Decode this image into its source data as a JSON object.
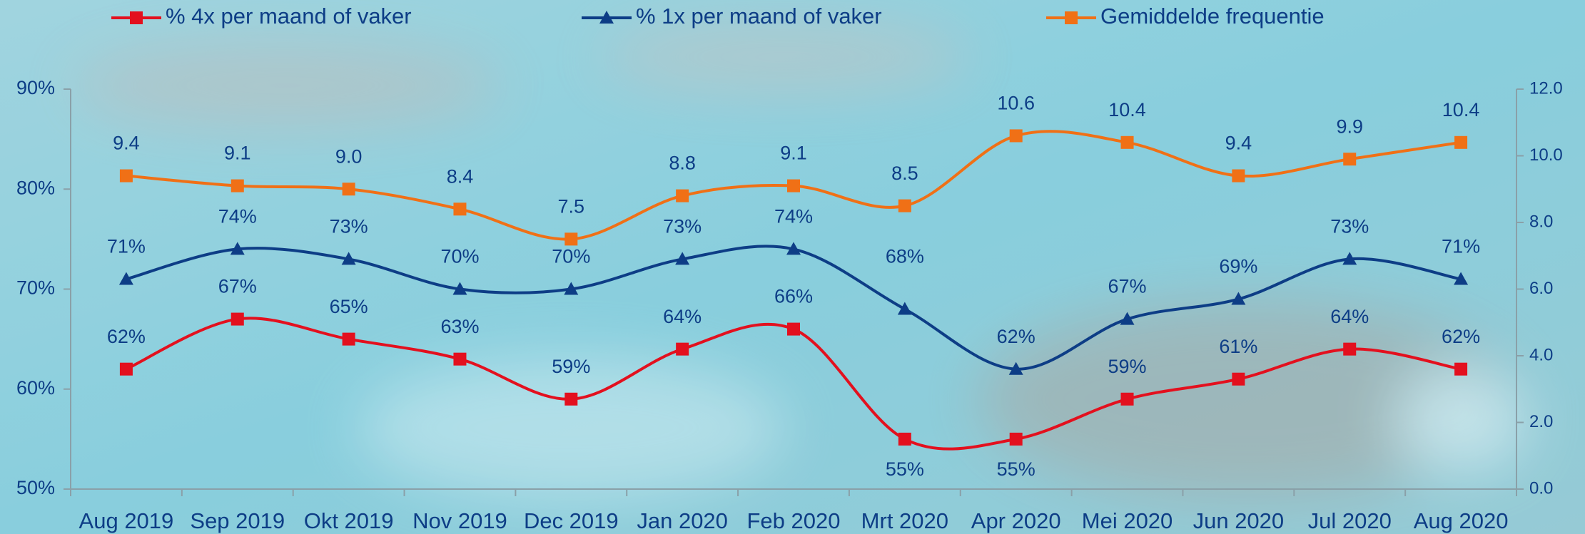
{
  "chart_data": {
    "type": "line",
    "categories": [
      "Aug 2019",
      "Sep 2019",
      "Okt 2019",
      "Nov 2019",
      "Dec 2019",
      "Jan 2020",
      "Feb 2020",
      "Mrt 2020",
      "Apr 2020",
      "Mei 2020",
      "Jun 2020",
      "Jul 2020",
      "Aug 2020"
    ],
    "series": [
      {
        "name": "% 4x per maand of vaker",
        "color": "#e3101e",
        "marker": "square",
        "values": [
          62,
          67,
          65,
          63,
          59,
          64,
          66,
          55,
          55,
          59,
          61,
          64,
          62
        ],
        "value_labels": [
          "62%",
          "67%",
          "65%",
          "63%",
          "59%",
          "64%",
          "66%",
          "55%",
          "55%",
          "59%",
          "61%",
          "64%",
          "62%"
        ]
      },
      {
        "name": "% 1x per maand of vaker",
        "color": "#0d3d86",
        "marker": "triangle",
        "values": [
          71,
          74,
          73,
          70,
          70,
          73,
          74,
          68,
          62,
          67,
          69,
          73,
          71
        ],
        "value_labels": [
          "71%",
          "74%",
          "73%",
          "70%",
          "70%",
          "73%",
          "74%",
          "68%",
          "62%",
          "67%",
          "69%",
          "73%",
          "71%"
        ]
      },
      {
        "name": "Gemiddelde frequentie",
        "color": "#f07016",
        "marker": "square",
        "axis": "y2",
        "values": [
          9.4,
          9.1,
          9.0,
          8.4,
          7.5,
          8.8,
          9.1,
          8.5,
          10.6,
          10.4,
          9.4,
          9.9,
          10.4
        ],
        "value_labels": [
          "9.4",
          "9.1",
          "9.0",
          "8.4",
          "7.5",
          "8.8",
          "9.1",
          "8.5",
          "10.6",
          "10.4",
          "9.4",
          "9.9",
          "10.4"
        ]
      }
    ],
    "ylim": [
      50,
      90
    ],
    "yticks": [
      {
        "value": 50,
        "label": "50%"
      },
      {
        "value": 60,
        "label": "60%"
      },
      {
        "value": 70,
        "label": "70%"
      },
      {
        "value": 80,
        "label": "80%"
      },
      {
        "value": 90,
        "label": "90%"
      }
    ],
    "y2lim": [
      0,
      12
    ],
    "y2ticks": [
      {
        "value": 0,
        "label": "0.0"
      },
      {
        "value": 2,
        "label": "2.0"
      },
      {
        "value": 4,
        "label": "4.0"
      },
      {
        "value": 6,
        "label": "6.0"
      },
      {
        "value": 8,
        "label": "8.0"
      },
      {
        "value": 10,
        "label": "10.0"
      },
      {
        "value": 12,
        "label": "12.0"
      }
    ],
    "legend": "top"
  }
}
